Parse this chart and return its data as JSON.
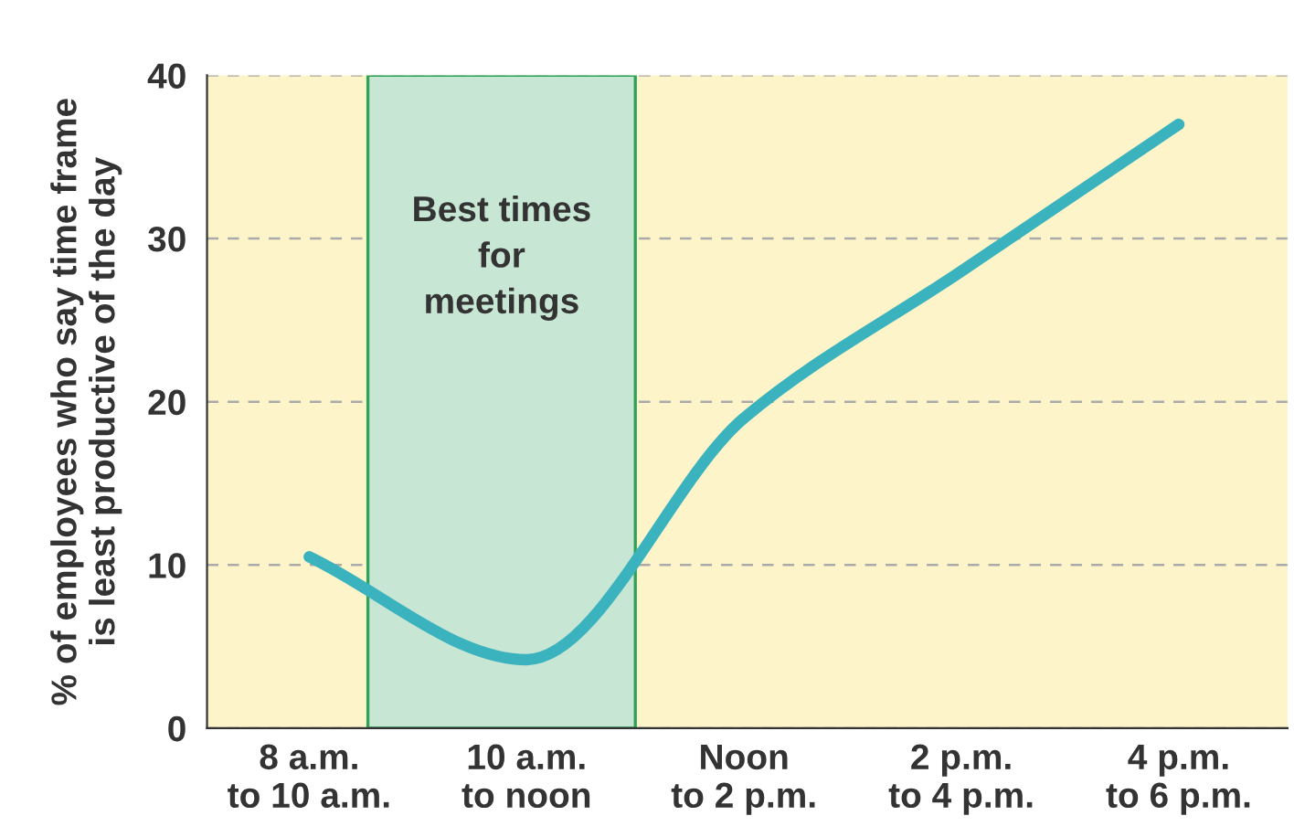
{
  "chart_data": {
    "type": "line",
    "ylabel": "% of employees who say time frame\nis least productive of the day",
    "categories": [
      "8 a.m.\nto 10 a.m.",
      "10 a.m.\nto noon",
      "Noon\nto 2 p.m.",
      "2 p.m.\nto 4 p.m.",
      "4 p.m.\nto 6 p.m."
    ],
    "series": [
      {
        "color": "#3bb3be",
        "values": [
          10.5,
          4.2,
          19,
          28,
          37
        ]
      }
    ],
    "ylim": [
      0,
      40
    ],
    "yticks": [
      0,
      10,
      20,
      30,
      40
    ],
    "annotations": [
      "Best times\nfor\nmeetings"
    ],
    "grid": "y",
    "line_style": "solid",
    "marker": "none"
  }
}
